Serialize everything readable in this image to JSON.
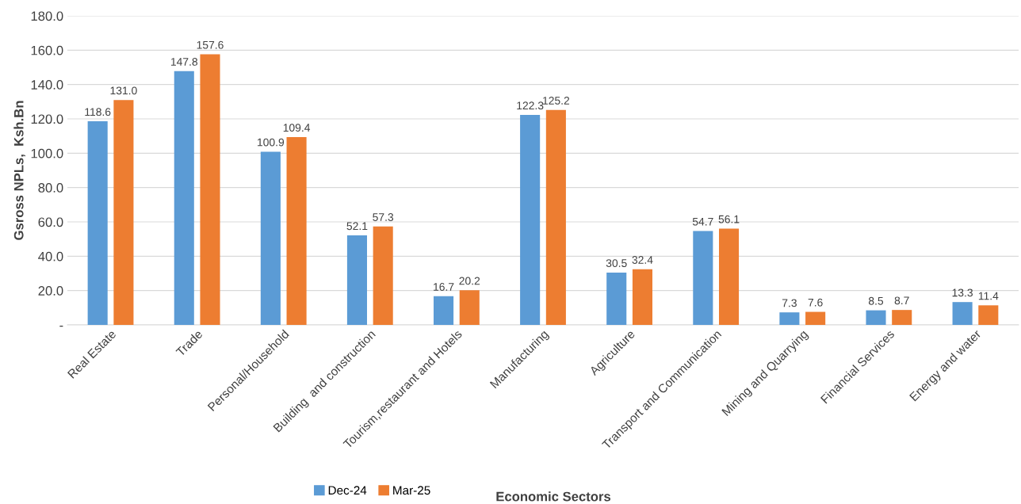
{
  "chart_data": {
    "type": "bar",
    "xlabel": "Economic Sectors",
    "ylabel": "Gsross NPLs,  Ksh.Bn",
    "categories": [
      "Real Estate",
      "Trade",
      "Personal/Household",
      "Building  and construction",
      "Tourism,restaurant and Hotels",
      "Manufacturing",
      "Agriculture",
      "Transport and Communication",
      "Mining and Quarrying",
      "Financial Services",
      "Energy and water"
    ],
    "series": [
      {
        "name": "Dec-24",
        "color": "#5b9bd5",
        "values": [
          118.6,
          147.8,
          100.9,
          52.1,
          16.7,
          122.3,
          30.5,
          54.7,
          7.3,
          8.5,
          13.3
        ],
        "value_labels": [
          "118.6",
          "147.8",
          "100.9",
          "52.1",
          "16.7",
          "122.3",
          "30.5",
          "54.7",
          "7.3",
          "8.5",
          "13.3"
        ]
      },
      {
        "name": "Mar-25",
        "color": "#ed7d31",
        "values": [
          131.0,
          157.6,
          109.4,
          57.3,
          20.2,
          125.2,
          32.4,
          56.1,
          7.6,
          8.7,
          11.4
        ],
        "value_labels": [
          "131.0",
          "157.6",
          "109.4",
          "57.3",
          "20.2",
          "125.2",
          "32.4",
          "56.1",
          "7.6",
          "8.7",
          "11.4"
        ]
      }
    ],
    "ylim": [
      0,
      180
    ],
    "yticks": [
      {
        "value": 0,
        "label": "-"
      },
      {
        "value": 20,
        "label": "20.0"
      },
      {
        "value": 40,
        "label": "40.0"
      },
      {
        "value": 60,
        "label": "60.0"
      },
      {
        "value": 80,
        "label": "80.0"
      },
      {
        "value": 100,
        "label": "100.0"
      },
      {
        "value": 120,
        "label": "120.0"
      },
      {
        "value": 140,
        "label": "140.0"
      },
      {
        "value": 160,
        "label": "160.0"
      },
      {
        "value": 180,
        "label": "180.0"
      }
    ],
    "grid": "y",
    "legend": "bottom"
  }
}
